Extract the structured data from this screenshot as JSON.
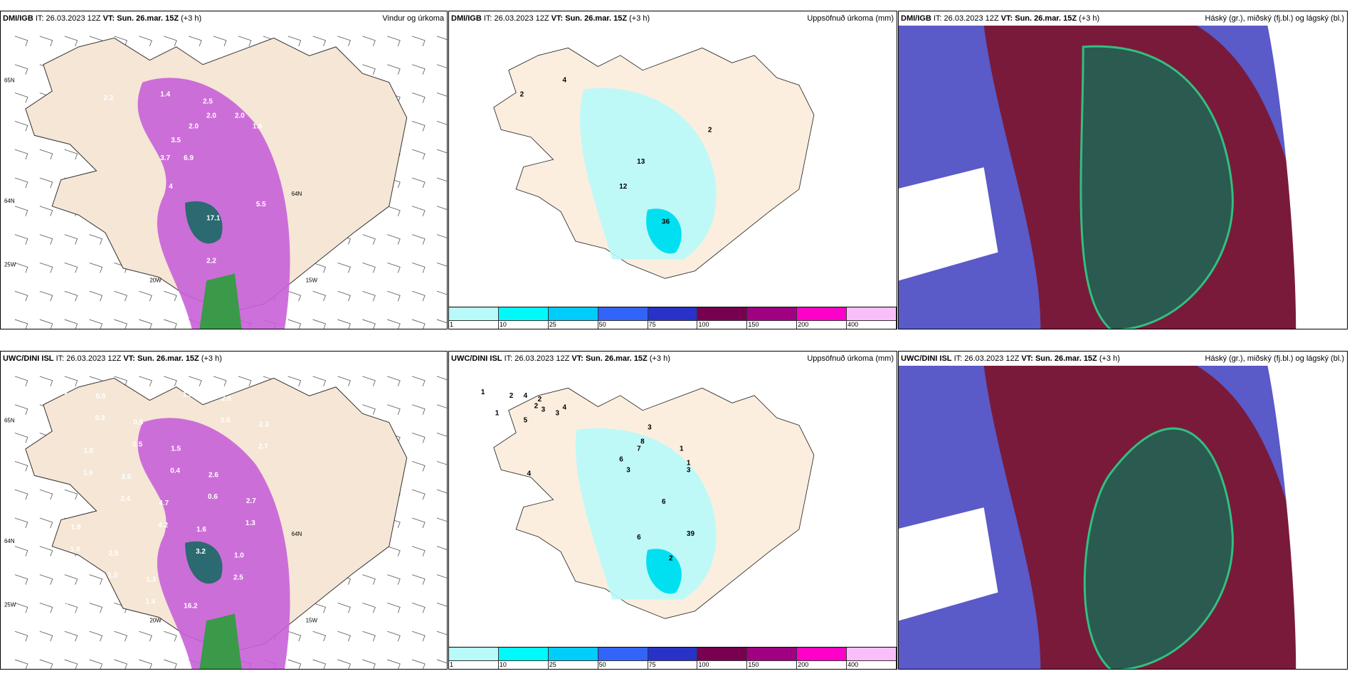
{
  "panels": [
    {
      "model": "DMI/IGB",
      "it_label": "IT:",
      "it": "26.03.2023 12Z",
      "vt_label": "VT:",
      "vt": "Sun. 26.mar. 15Z",
      "lead": "(+3 h)",
      "title": "Vindur og úrkoma",
      "type": "wind",
      "values": [
        "2.2",
        "1.4",
        "2.5",
        "2.0",
        "2.0",
        "2.0",
        "1.6",
        "3.5",
        "3.7",
        "6.9",
        "4",
        "5.5",
        "17.1",
        "2.2"
      ],
      "axes": [
        "65N",
        "64N",
        "25W",
        "20W",
        "15W",
        "64N"
      ]
    },
    {
      "model": "DMI/IGB",
      "it_label": "IT:",
      "it": "26.03.2023 12Z",
      "vt_label": "VT:",
      "vt": "Sun. 26.mar. 15Z",
      "lead": "(+3 h)",
      "title": "Uppsöfnuð úrkoma (mm)",
      "type": "precip",
      "values": [
        "2",
        "4",
        "2",
        "13",
        "12",
        "36"
      ]
    },
    {
      "model": "DMI/IGB",
      "it_label": "IT:",
      "it": "26.03.2023 12Z",
      "vt_label": "VT:",
      "vt": "Sun. 26.mar. 15Z",
      "lead": "(+3 h)",
      "title": "Háský (gr.), miðský (fj.bl.) og lágský (bl.)",
      "type": "cloud"
    },
    {
      "model": "UWC/DINI ISL",
      "it_label": "IT:",
      "it": "26.03.2023 12Z",
      "vt_label": "VT:",
      "vt": "Sun. 26.mar. 15Z",
      "lead": "(+3 h)",
      "title": "",
      "type": "wind",
      "values": [
        "0.6",
        "0.3",
        "0.5",
        "0.4",
        "0.6",
        "1.3",
        "1.0",
        "1.5",
        "1.4",
        "1.2",
        "0.6",
        "2.7",
        "1.9",
        "2.4",
        "4.2",
        "3.2",
        "2.5",
        "1.0",
        "0.8",
        "0.5",
        "1.5",
        "2.6",
        "2.7",
        "1.9",
        "2.5",
        "1.3",
        "16.2",
        "2.8",
        "2.3",
        "1.0",
        "2.5",
        "4.7",
        "1.6",
        "1.0"
      ],
      "axes": [
        "65N",
        "64N",
        "25W",
        "20W",
        "15W",
        "64N"
      ]
    },
    {
      "model": "UWC/DINI ISL",
      "it_label": "IT:",
      "it": "26.03.2023 12Z",
      "vt_label": "VT:",
      "vt": "Sun. 26.mar. 15Z",
      "lead": "(+3 h)",
      "title": "Uppsöfnuð úrkoma (mm)",
      "type": "precip",
      "values": [
        "1",
        "1",
        "2",
        "4",
        "2",
        "2",
        "3",
        "5",
        "3",
        "4",
        "4",
        "3",
        "8",
        "7",
        "6",
        "1",
        "1",
        "3",
        "3",
        "6",
        "6",
        "39",
        "2"
      ]
    },
    {
      "model": "UWC/DINI ISL",
      "it_label": "IT:",
      "it": "26.03.2023 12Z",
      "vt_label": "VT:",
      "vt": "Sun. 26.mar. 15Z",
      "lead": "(+3 h)",
      "title": "Háský (gr.), miðský (fj.bl.) og lágský (bl.)",
      "type": "cloud"
    }
  ],
  "colorbar": {
    "ticks": [
      "1",
      "10",
      "25",
      "50",
      "75",
      "100",
      "150",
      "200",
      "400"
    ],
    "colors": [
      "#b8fafa",
      "#00fafa",
      "#00cdfa",
      "#3264fa",
      "#2832c8",
      "#780050",
      "#a00082",
      "#ff00c8",
      "#fabefa"
    ]
  }
}
